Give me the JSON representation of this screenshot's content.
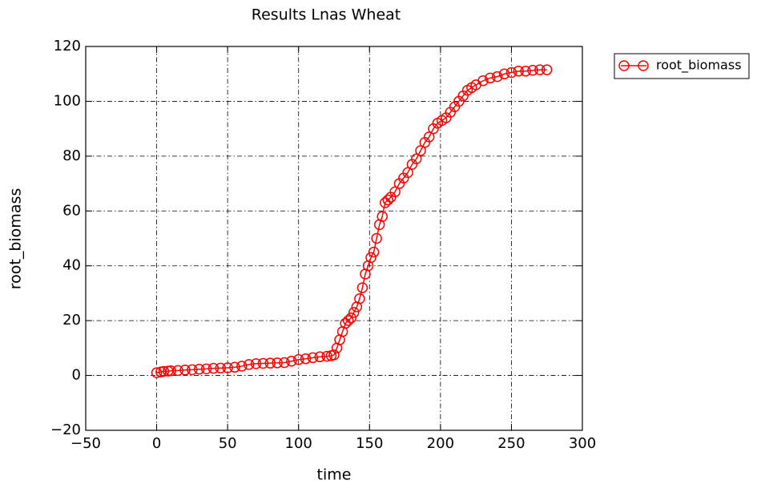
{
  "chart_data": {
    "type": "line",
    "title": "Results Lnas Wheat",
    "x_label": "time",
    "y_label": "root_biomass",
    "x": [
      0,
      3,
      5,
      8,
      10,
      15,
      20,
      25,
      30,
      35,
      40,
      45,
      50,
      55,
      60,
      65,
      70,
      75,
      80,
      85,
      90,
      95,
      100,
      105,
      110,
      115,
      120,
      123,
      125,
      127,
      129,
      131,
      133,
      135,
      137,
      139,
      141,
      143,
      145,
      147,
      149,
      151,
      153,
      155,
      157,
      159,
      161,
      163,
      165,
      168,
      171,
      174,
      177,
      180,
      183,
      186,
      189,
      192,
      195,
      198,
      201,
      204,
      207,
      210,
      213,
      216,
      219,
      222,
      225,
      230,
      235,
      240,
      245,
      250,
      255,
      260,
      265,
      270,
      275
    ],
    "series": [
      {
        "name": "root_biomass",
        "color": "#ff0000",
        "values": [
          1,
          1.3,
          1.5,
          1.6,
          1.7,
          1.8,
          2,
          2.1,
          2.3,
          2.4,
          2.6,
          2.7,
          2.8,
          3,
          3.4,
          4,
          4.3,
          4.4,
          4.5,
          4.6,
          4.7,
          5.2,
          5.8,
          6.1,
          6.5,
          6.8,
          7,
          7.2,
          7.5,
          10,
          13,
          16,
          19,
          20,
          21,
          23,
          25,
          28,
          32,
          37,
          40,
          43,
          45,
          50,
          55,
          58,
          63,
          64,
          65,
          67,
          70,
          72,
          74,
          77,
          79,
          82,
          85,
          87,
          90,
          92,
          93,
          94,
          96,
          98,
          100,
          102,
          104,
          105,
          106,
          107.5,
          108.5,
          109,
          110,
          110.5,
          111,
          111,
          111.3,
          111.5,
          111.5
        ]
      }
    ],
    "xlim": [
      -50,
      300
    ],
    "ylim": [
      -20,
      120
    ],
    "xticks": [
      {
        "value": -50,
        "label": "−50"
      },
      0,
      50,
      100,
      150,
      200,
      250,
      300
    ],
    "yticks": [
      {
        "value": -20,
        "label": "−20"
      },
      0,
      20,
      40,
      60,
      80,
      100,
      120
    ],
    "grid": true,
    "legend": "outside upper right"
  }
}
